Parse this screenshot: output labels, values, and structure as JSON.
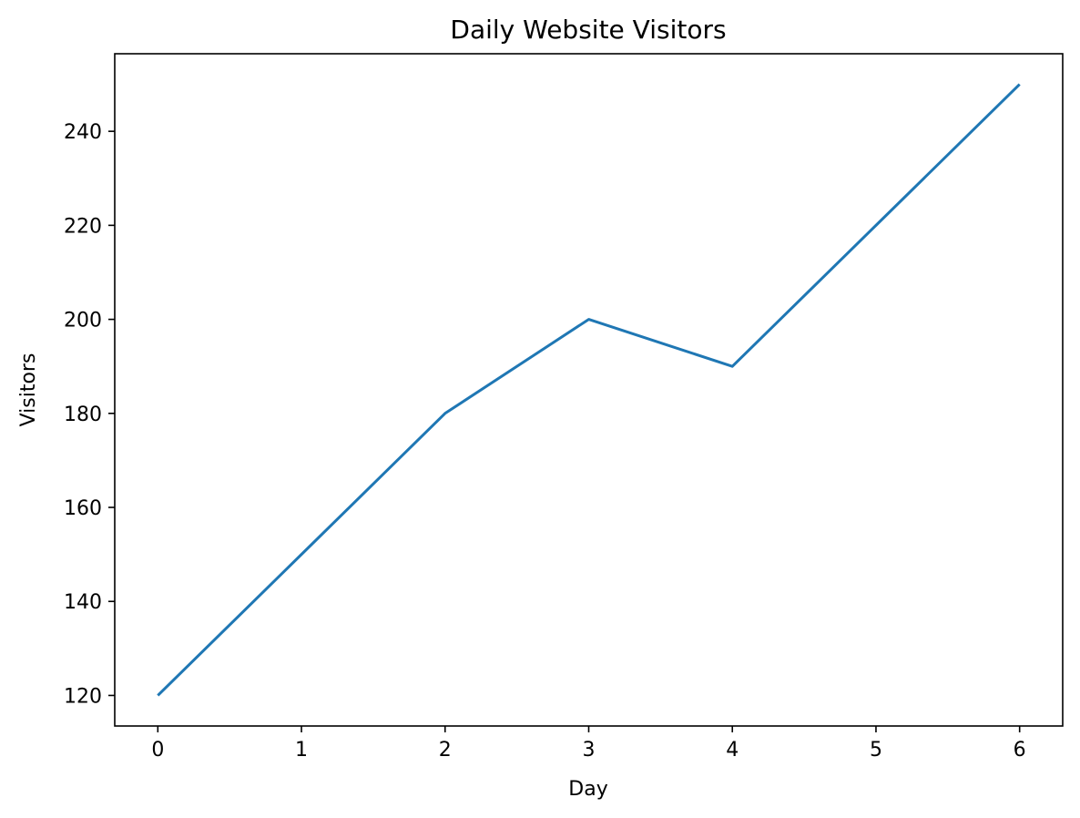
{
  "chart_data": {
    "type": "line",
    "title": "Daily Website Visitors",
    "xlabel": "Day",
    "ylabel": "Visitors",
    "x": [
      0,
      1,
      2,
      3,
      4,
      5,
      6
    ],
    "series": [
      {
        "values": [
          120,
          150,
          180,
          200,
          190,
          220,
          250
        ],
        "color": "#1f77b4"
      }
    ],
    "xlim": [
      -0.3,
      6.3
    ],
    "ylim": [
      113.5,
      256.5
    ],
    "xticks": [
      0,
      1,
      2,
      3,
      4,
      5,
      6
    ],
    "yticks": [
      120,
      140,
      160,
      180,
      200,
      220,
      240
    ],
    "grid": false,
    "legend": "none"
  }
}
